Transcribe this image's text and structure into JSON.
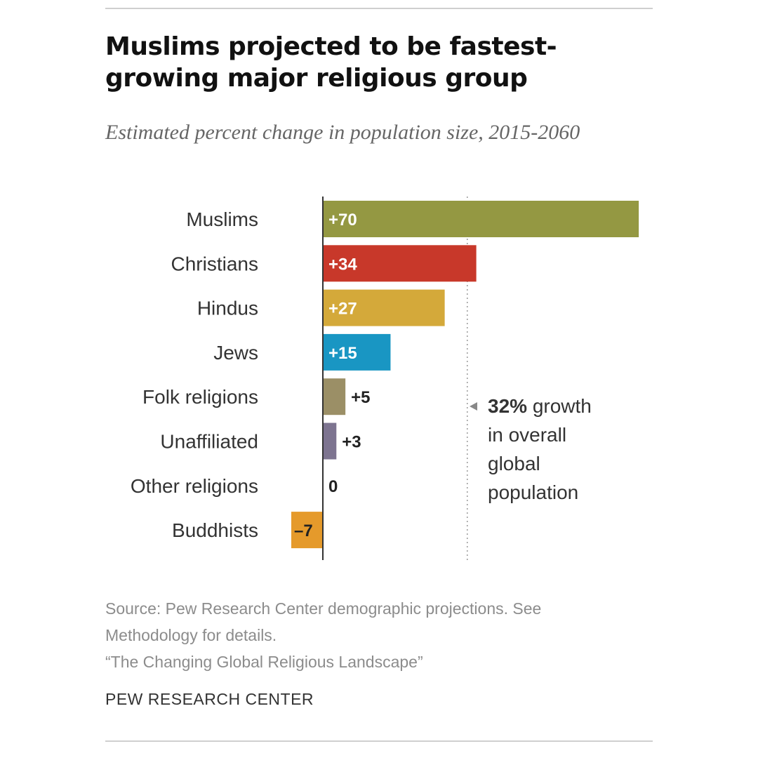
{
  "header": {
    "title": "Muslims projected to be fastest-growing major religious group",
    "subtitle": "Estimated percent change in population size, 2015-2060"
  },
  "chart_data": {
    "type": "bar",
    "orientation": "horizontal",
    "categories": [
      "Muslims",
      "Christians",
      "Hindus",
      "Jews",
      "Folk religions",
      "Unaffiliated",
      "Other religions",
      "Buddhists"
    ],
    "values": [
      70,
      34,
      27,
      15,
      5,
      3,
      0,
      -7
    ],
    "value_labels": [
      "+70",
      "+34",
      "+27",
      "+15",
      "+5",
      "+3",
      "0",
      "–7"
    ],
    "colors": [
      "#949842",
      "#c8382a",
      "#d4a93a",
      "#1996c3",
      "#9b8f66",
      "#7d7490",
      "#999999",
      "#e59a2b"
    ],
    "reference": {
      "value": 32,
      "label_bold": "32%",
      "label_lines": [
        " growth",
        "in overall",
        "global",
        "population"
      ]
    },
    "xlim": [
      -7,
      70
    ]
  },
  "footer": {
    "source_lines": [
      "Source: Pew Research Center demographic projections. See",
      "Methodology for details.",
      "“The Changing Global Religious Landscape”"
    ],
    "brand": "PEW RESEARCH CENTER"
  }
}
